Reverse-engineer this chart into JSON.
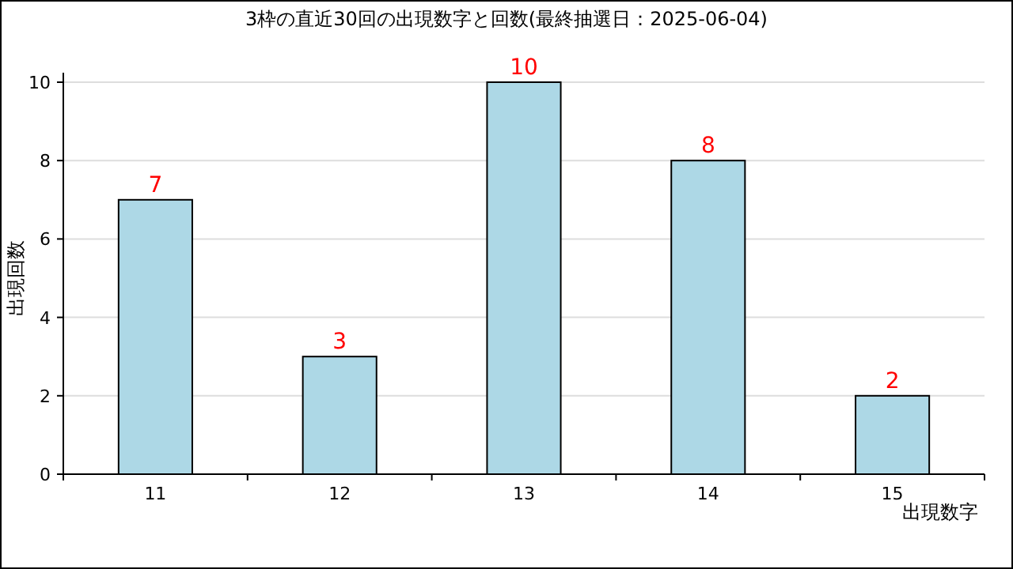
{
  "chart_data": {
    "type": "bar",
    "title": "3枠の直近30回の出現数字と回数(最終抽選日：2025-06-04)",
    "xlabel": "出現数字",
    "ylabel": "出現回数",
    "categories": [
      "11",
      "12",
      "13",
      "14",
      "15"
    ],
    "values": [
      7,
      3,
      10,
      8,
      2
    ],
    "color": "#add8e6",
    "ylim": [
      0,
      10
    ],
    "yticks": [
      0,
      2,
      4,
      6,
      8,
      10
    ],
    "grid": "y",
    "data_labels": true
  }
}
